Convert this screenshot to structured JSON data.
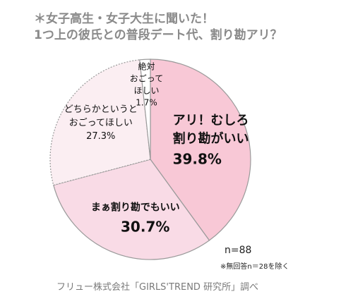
{
  "header": {
    "title_line1": "＊女子高生・女子大生に聞いた！",
    "title_line2": "1つ上の彼氏との普段デート代、割り勘アリ？"
  },
  "chart_data": {
    "type": "pie",
    "start_angle_deg": 0,
    "direction": "clockwise",
    "slices": [
      {
        "label_lines": [
          "アリ！むしろ",
          "割り勘がいい"
        ],
        "value": 39.8,
        "value_text": "39.8%",
        "color": "#f8c8d6"
      },
      {
        "label_lines": [
          "まぁ割り勘でもいい"
        ],
        "value": 30.7,
        "value_text": "30.7%",
        "color": "#f9dbe6"
      },
      {
        "label_lines": [
          "どちらかというと",
          "おごってほしい"
        ],
        "value": 27.3,
        "value_text": "27.3%",
        "color": "#fbeef2"
      },
      {
        "label_lines": [
          "絶対",
          "おごって",
          "ほしい"
        ],
        "value": 1.7,
        "value_text": "1.7%",
        "color": "#ffffff"
      }
    ]
  },
  "footer": {
    "sample_size": "n=88",
    "note": "※無回答n＝28を除く",
    "source": "フリュー株式会社「GIRLS'TREND 研究所」調べ"
  }
}
